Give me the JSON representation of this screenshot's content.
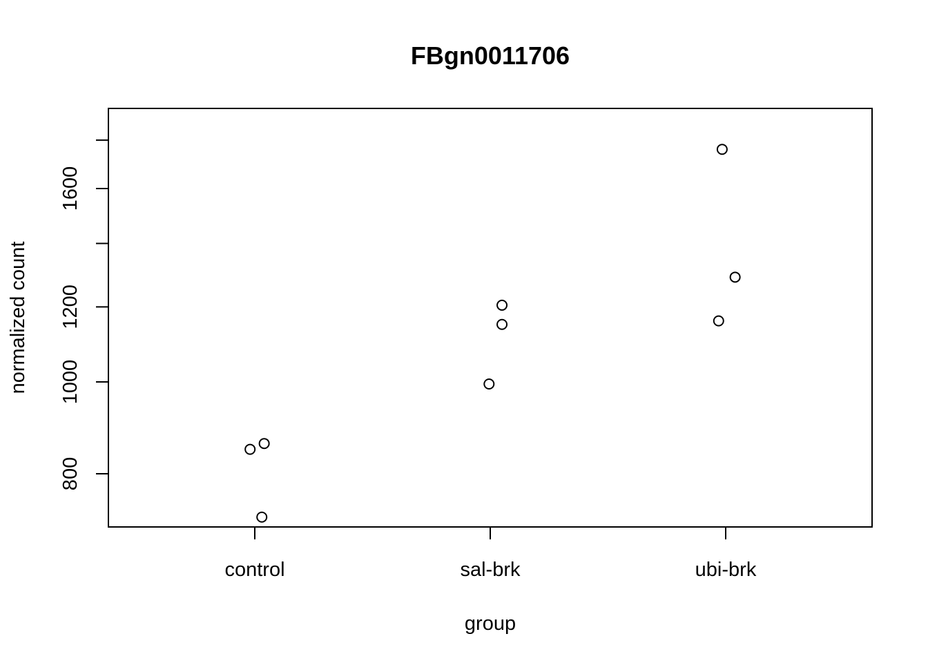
{
  "chart_data": {
    "type": "scatter",
    "title": "FBgn0011706",
    "xlabel": "group",
    "ylabel": "normalized count",
    "categories": [
      "control",
      "sal-brk",
      "ubi-brk"
    ],
    "y_scale": "log",
    "yticks": [
      800,
      1000,
      1200,
      1600
    ],
    "ylim": [
      700,
      1780
    ],
    "grid": false,
    "points": [
      {
        "category": "control",
        "jitter": -0.02,
        "y": 849
      },
      {
        "category": "control",
        "jitter": 0.04,
        "y": 861
      },
      {
        "category": "control",
        "jitter": 0.03,
        "y": 720
      },
      {
        "category": "sal-brk",
        "jitter": -0.005,
        "y": 995
      },
      {
        "category": "sal-brk",
        "jitter": 0.05,
        "y": 1150
      },
      {
        "category": "sal-brk",
        "jitter": 0.05,
        "y": 1205
      },
      {
        "category": "ubi-brk",
        "jitter": -0.015,
        "y": 1760
      },
      {
        "category": "ubi-brk",
        "jitter": 0.04,
        "y": 1290
      },
      {
        "category": "ubi-brk",
        "jitter": -0.03,
        "y": 1160
      }
    ]
  }
}
